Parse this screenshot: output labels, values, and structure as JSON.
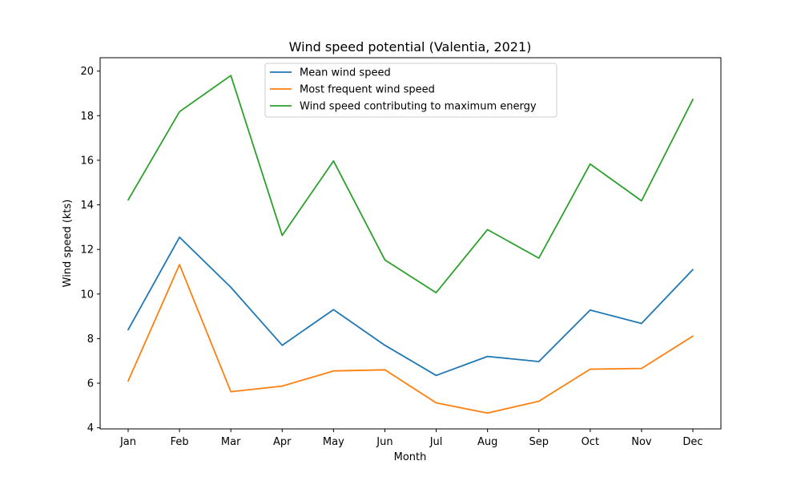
{
  "chart_data": {
    "type": "line",
    "title": "Wind speed potential (Valentia, 2021)",
    "xlabel": "Month",
    "ylabel": "Wind speed (kts)",
    "categories": [
      "Jan",
      "Feb",
      "Mar",
      "Apr",
      "May",
      "Jun",
      "Jul",
      "Aug",
      "Sep",
      "Oct",
      "Nov",
      "Dec"
    ],
    "ylim": [
      3.95,
      20.6
    ],
    "yticks": [
      4,
      6,
      8,
      10,
      12,
      14,
      16,
      18,
      20
    ],
    "grid": false,
    "legend_position": "top-center",
    "series": [
      {
        "name": "Mean wind speed",
        "color": "#1f77b4",
        "values": [
          8.4,
          12.55,
          10.3,
          7.7,
          9.3,
          7.7,
          6.35,
          7.2,
          6.97,
          9.28,
          8.68,
          11.1
        ]
      },
      {
        "name": "Most frequent wind speed",
        "color": "#ff7f0e",
        "values": [
          6.1,
          11.32,
          5.62,
          5.87,
          6.55,
          6.6,
          5.12,
          4.66,
          5.19,
          6.63,
          6.66,
          8.11
        ]
      },
      {
        "name": "Wind speed contributing to maximum energy",
        "color": "#2ca02c",
        "values": [
          14.22,
          18.18,
          19.8,
          12.63,
          15.97,
          11.53,
          10.06,
          12.89,
          11.61,
          15.83,
          14.18,
          18.73
        ]
      }
    ]
  }
}
